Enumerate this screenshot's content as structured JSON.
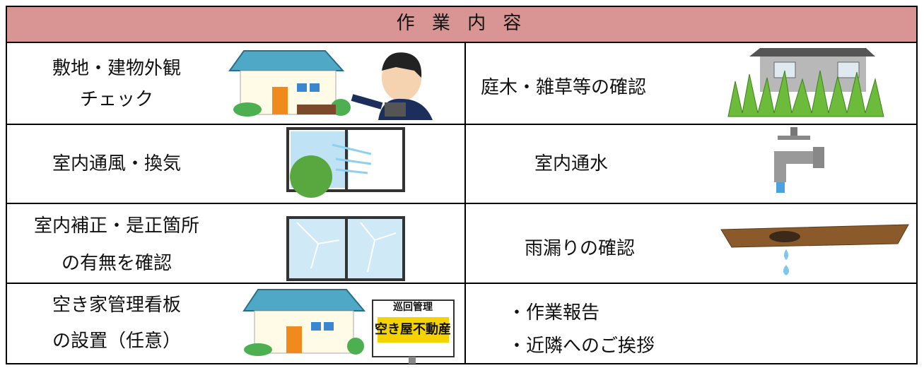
{
  "header": {
    "title": "作 業 内 容"
  },
  "table": {
    "rows": [
      [
        {
          "text": [
            "敷地・建物外観",
            "チェック"
          ]
        },
        {
          "text": [
            "庭木・雑草等の確認"
          ]
        }
      ],
      [
        {
          "text": [
            "室内通風・換気"
          ]
        },
        {
          "text": [
            "室内通水"
          ]
        }
      ],
      [
        {
          "text": [
            "室内補正・是正箇所",
            "の有無を確認"
          ]
        },
        {
          "text": [
            "雨漏りの確認"
          ]
        }
      ],
      [
        {
          "text": [
            "空き家管理看板",
            "の設置（任意）"
          ]
        },
        {
          "text": [
            "・作業報告",
            "・近隣へのご挨拶"
          ]
        }
      ]
    ]
  },
  "sign": {
    "top": "巡回管理",
    "main": "空き屋不動産"
  }
}
